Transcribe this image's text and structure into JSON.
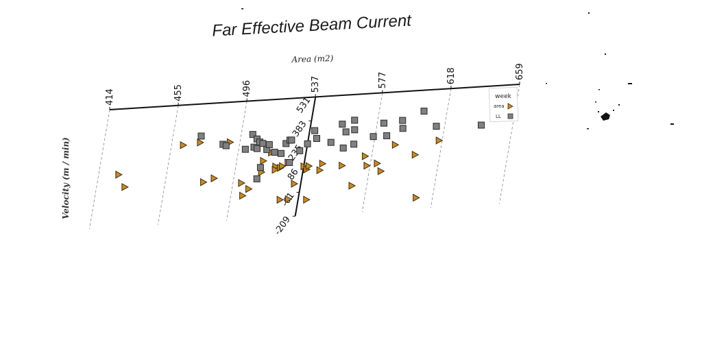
{
  "chart_data": {
    "type": "scatter",
    "title": "Far Effective Beam Current",
    "xlabel": "Area (m2)",
    "ylabel": "Velocity (m / min)",
    "xlim": [
      414,
      659
    ],
    "ylim": [
      -209,
      531
    ],
    "xticks": [
      414,
      455,
      496,
      537,
      577,
      618,
      659
    ],
    "yticks": [
      531,
      383,
      235,
      86,
      -61,
      -209
    ],
    "grid": "vertical dashed at x ticks",
    "legend": {
      "title": "week",
      "placement": "top-right",
      "entries": [
        {
          "label": "area",
          "marker": "triangle",
          "color": "#c98a26"
        },
        {
          "label": "LL",
          "marker": "square",
          "color": "#808080"
        }
      ]
    },
    "series": [
      {
        "name": "area",
        "marker": "triangle",
        "color": "#c98a26",
        "points": [
          [
            426,
            120
          ],
          [
            431,
            40
          ],
          [
            462,
            280
          ],
          [
            472,
            290
          ],
          [
            478,
            40
          ],
          [
            484,
            60
          ],
          [
            490,
            280
          ],
          [
            501,
            20
          ],
          [
            503,
            -60
          ],
          [
            506,
            -20
          ],
          [
            512,
            150
          ],
          [
            512,
            80
          ],
          [
            516,
            200
          ],
          [
            520,
            110
          ],
          [
            520,
            90
          ],
          [
            523,
            100
          ],
          [
            524,
            110
          ],
          [
            526,
            -100
          ],
          [
            531,
            -100
          ],
          [
            527,
            130
          ],
          [
            533,
            -5
          ],
          [
            537,
            100
          ],
          [
            539,
            80
          ],
          [
            540,
            100
          ],
          [
            542,
            -110
          ],
          [
            547,
            70
          ],
          [
            548,
            110
          ],
          [
            560,
            90
          ],
          [
            568,
            -40
          ],
          [
            573,
            140
          ],
          [
            575,
            80
          ],
          [
            581,
            90
          ],
          [
            584,
            40
          ],
          [
            590,
            200
          ],
          [
            603,
            130
          ],
          [
            608,
            -140
          ],
          [
            616,
            210
          ]
        ]
      },
      {
        "name": "LL",
        "marker": "square",
        "color": "#808080",
        "points": [
          [
            472,
            330
          ],
          [
            486,
            270
          ],
          [
            488,
            260
          ],
          [
            500,
            230
          ],
          [
            503,
            320
          ],
          [
            505,
            240
          ],
          [
            506,
            290
          ],
          [
            507,
            230
          ],
          [
            508,
            270
          ],
          [
            510,
            260
          ],
          [
            510,
            40
          ],
          [
            511,
            110
          ],
          [
            513,
            220
          ],
          [
            514,
            250
          ],
          [
            518,
            200
          ],
          [
            522,
            190
          ],
          [
            524,
            250
          ],
          [
            526,
            270
          ],
          [
            527,
            270
          ],
          [
            528,
            130
          ],
          [
            533,
            200
          ],
          [
            537,
            240
          ],
          [
            540,
            320
          ],
          [
            542,
            270
          ],
          [
            551,
            240
          ],
          [
            556,
            350
          ],
          [
            559,
            300
          ],
          [
            559,
            200
          ],
          [
            563,
            370
          ],
          [
            564,
            310
          ],
          [
            565,
            220
          ],
          [
            576,
            260
          ],
          [
            581,
            340
          ],
          [
            584,
            260
          ],
          [
            592,
            350
          ],
          [
            593,
            300
          ],
          [
            604,
            400
          ],
          [
            613,
            300
          ],
          [
            640,
            290
          ]
        ]
      }
    ]
  }
}
